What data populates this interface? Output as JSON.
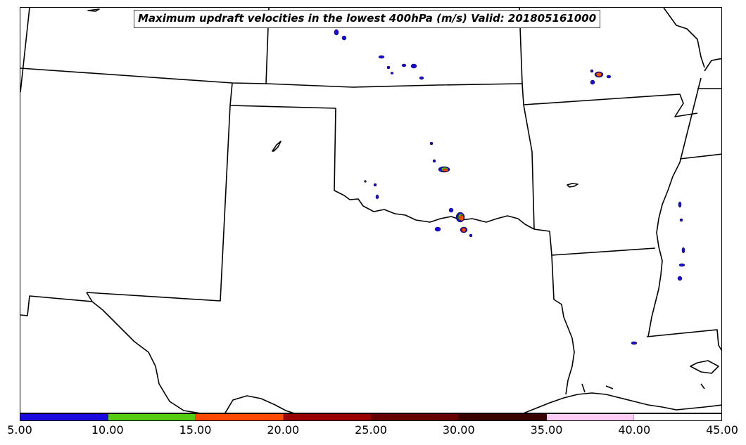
{
  "title": "Maximum updraft velocities in the lowest 400hPa (m/s) Valid: 201805161000",
  "colorbar": {
    "ticks": [
      "5.00",
      "10.00",
      "15.00",
      "20.00",
      "25.00",
      "30.00",
      "35.00",
      "40.00",
      "45.00"
    ],
    "colors": [
      "#1a0ae0",
      "#55cc10",
      "#ff4a00",
      "#990000",
      "#660000",
      "#3a0000",
      "#ffccf5",
      "#ffffff"
    ]
  },
  "colors": {
    "border": "#000000",
    "updraft_5_10": "#1a0ae0",
    "updraft_10_15": "#55cc10",
    "updraft_15_20": "#ff4a00",
    "updraft_20_25": "#990000"
  }
}
